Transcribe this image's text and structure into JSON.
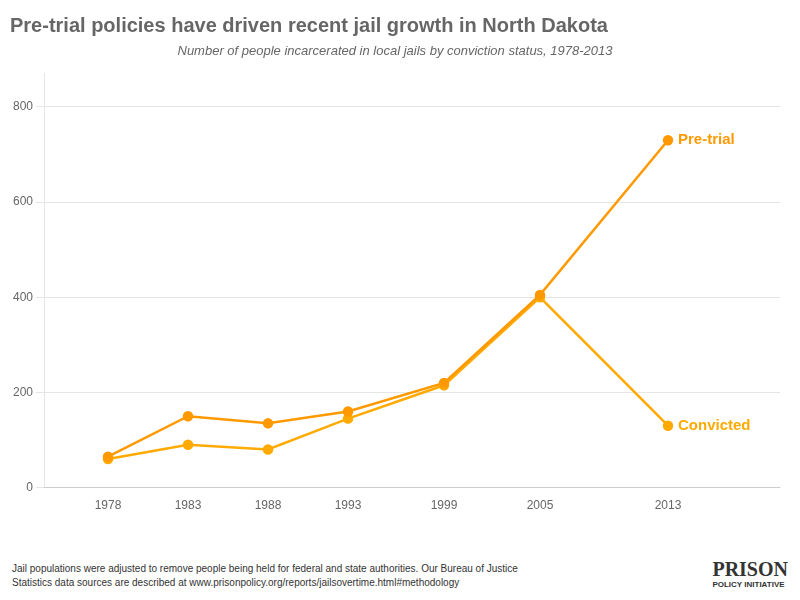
{
  "chart_data": {
    "type": "line",
    "title": "Pre-trial policies have driven recent jail growth in North Dakota",
    "subtitle": "Number of people incarcerated in local jails by conviction status, 1978-2013",
    "x": [
      1978,
      1983,
      1988,
      1993,
      1999,
      2005,
      2013
    ],
    "series": [
      {
        "name": "Pre-trial",
        "color": "#FF9900",
        "values": [
          65,
          150,
          135,
          160,
          220,
          405,
          730
        ]
      },
      {
        "name": "Convicted",
        "color": "#FFAA00",
        "values": [
          60,
          90,
          80,
          145,
          215,
          400,
          130
        ]
      }
    ],
    "xlim": [
      1974,
      2020
    ],
    "xticks": [
      1978,
      1983,
      1988,
      1993,
      1999,
      2005,
      2013
    ],
    "ylim": [
      0,
      870
    ],
    "yticks": [
      0,
      200,
      400,
      600,
      800
    ],
    "grid": true,
    "marker": "circle",
    "footnotes": [
      "Jail populations were adjusted to remove people being held for federal and state authorities. Our Bureau of Justice",
      "Statistics data sources are described at www.prisonpolicy.org/reports/jailsovertime.html#methodology"
    ],
    "logo": [
      "PRISON",
      "POLICY INITIATIVE"
    ]
  }
}
